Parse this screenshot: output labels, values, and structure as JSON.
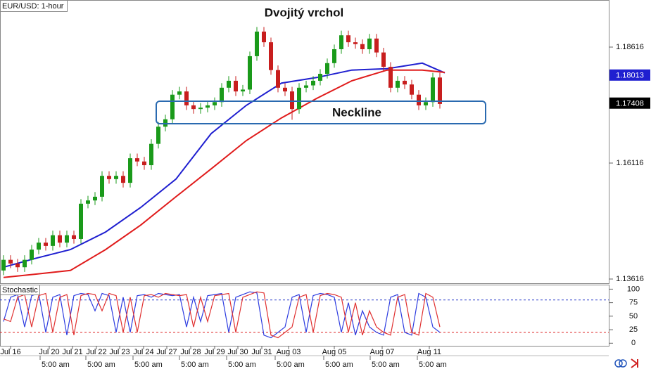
{
  "chart_data": [
    {
      "type": "candlestick",
      "label": "EUR/USD: 1-hour",
      "title": "Dvojitý vrchol",
      "annotation": "Neckline",
      "x": [
        0.5,
        1.5,
        2.5,
        3.5,
        4.5,
        5.5,
        6.5,
        7.5,
        8.5,
        9.5,
        10.5,
        11.5,
        12.5,
        13.5,
        14.5,
        15.5,
        16.5,
        17.5,
        18.5,
        19.5,
        20.5,
        21.5,
        22.5,
        23.5,
        24.5,
        25.5,
        26.5,
        27.5,
        28.5,
        29.5,
        30.5,
        31.5,
        32.5,
        33.5,
        34.5,
        35.5,
        36.5,
        37.5,
        38.5,
        39.5,
        40.5,
        41.5,
        42.5,
        43.5,
        44.5,
        45.5,
        46.5,
        47.5,
        48.5,
        49.5,
        50.5,
        51.5,
        52.5,
        53.5,
        54.5,
        55.5,
        56.5,
        57.5,
        58.5,
        59.5,
        60.5,
        61.5,
        62.5
      ],
      "open": [
        1.138,
        1.1403,
        1.1395,
        1.1387,
        1.1403,
        1.1425,
        1.144,
        1.1433,
        1.1456,
        1.144,
        1.1456,
        1.1448,
        1.1524,
        1.1531,
        1.1539,
        1.1584,
        1.1577,
        1.1584,
        1.1569,
        1.1622,
        1.1615,
        1.1607,
        1.1653,
        1.169,
        1.1706,
        1.1759,
        1.1766,
        1.1736,
        1.1728,
        1.1731,
        1.1736,
        1.1743,
        1.1774,
        1.1789,
        1.1766,
        1.177,
        1.1842,
        1.1895,
        1.1872,
        1.1812,
        1.1774,
        1.1766,
        1.1728,
        1.1774,
        1.1779,
        1.1789,
        1.1804,
        1.1827,
        1.1857,
        1.1887,
        1.1872,
        1.1868,
        1.1857,
        1.188,
        1.185,
        1.1819,
        1.1774,
        1.1789,
        1.1781,
        1.1759,
        1.1736,
        1.1743,
        1.1796
      ],
      "high": [
        1.1413,
        1.1413,
        1.1405,
        1.1413,
        1.1435,
        1.145,
        1.145,
        1.1466,
        1.1466,
        1.1466,
        1.1466,
        1.1534,
        1.1541,
        1.1549,
        1.1594,
        1.1594,
        1.1594,
        1.1594,
        1.1632,
        1.1632,
        1.1625,
        1.1663,
        1.17,
        1.1716,
        1.1769,
        1.1776,
        1.1776,
        1.1746,
        1.1741,
        1.1746,
        1.1753,
        1.1784,
        1.1799,
        1.1799,
        1.178,
        1.1852,
        1.1905,
        1.1905,
        1.1882,
        1.1822,
        1.1784,
        1.1776,
        1.1784,
        1.1789,
        1.1799,
        1.1814,
        1.1837,
        1.1867,
        1.1897,
        1.1897,
        1.1882,
        1.1878,
        1.189,
        1.189,
        1.186,
        1.1829,
        1.1799,
        1.1799,
        1.1791,
        1.1769,
        1.1753,
        1.1806,
        1.1806
      ],
      "low": [
        1.137,
        1.1385,
        1.1377,
        1.1377,
        1.1393,
        1.1415,
        1.1423,
        1.1423,
        1.143,
        1.143,
        1.1438,
        1.1438,
        1.1514,
        1.1521,
        1.1529,
        1.1567,
        1.1567,
        1.1559,
        1.1559,
        1.1605,
        1.1597,
        1.1597,
        1.1643,
        1.168,
        1.1696,
        1.1749,
        1.1726,
        1.1718,
        1.1718,
        1.1721,
        1.1726,
        1.1733,
        1.1764,
        1.1756,
        1.1756,
        1.176,
        1.1832,
        1.1862,
        1.1802,
        1.1764,
        1.1756,
        1.1705,
        1.1718,
        1.1764,
        1.1769,
        1.1779,
        1.1794,
        1.1817,
        1.1847,
        1.1862,
        1.1858,
        1.1847,
        1.1847,
        1.184,
        1.1809,
        1.1764,
        1.1764,
        1.1771,
        1.1749,
        1.1726,
        1.1726,
        1.1733,
        1.1729
      ],
      "close": [
        1.1403,
        1.1395,
        1.1387,
        1.1403,
        1.1425,
        1.144,
        1.1433,
        1.1456,
        1.144,
        1.1456,
        1.1448,
        1.1524,
        1.1531,
        1.1539,
        1.1584,
        1.1577,
        1.1584,
        1.1569,
        1.1622,
        1.1615,
        1.1607,
        1.1653,
        1.169,
        1.1706,
        1.1759,
        1.1766,
        1.1736,
        1.1728,
        1.1731,
        1.1736,
        1.1743,
        1.1774,
        1.1789,
        1.1766,
        1.177,
        1.1842,
        1.1895,
        1.1872,
        1.1812,
        1.1774,
        1.1766,
        1.1728,
        1.1774,
        1.1779,
        1.1789,
        1.1804,
        1.1827,
        1.1857,
        1.1887,
        1.1872,
        1.1868,
        1.1857,
        1.188,
        1.185,
        1.1819,
        1.1774,
        1.1789,
        1.1781,
        1.1759,
        1.1736,
        1.1743,
        1.1796,
        1.1739
      ],
      "up_color": "#1a9a1a",
      "down_color": "#c81e1e",
      "moving_averages": [
        {
          "color": "#1f1fd0",
          "x": [
            0.5,
            5,
            10,
            15,
            20,
            25,
            30,
            35,
            40,
            45,
            50,
            55,
            60,
            63.2
          ],
          "values": [
            1.1387,
            1.1406,
            1.1425,
            1.1463,
            1.1516,
            1.1577,
            1.1675,
            1.1736,
            1.1784,
            1.1796,
            1.1812,
            1.1815,
            1.1827,
            1.1806
          ]
        },
        {
          "color": "#e01b1b",
          "x": [
            0.5,
            5,
            10,
            15,
            20,
            25,
            30,
            35,
            40,
            45,
            50,
            55,
            60,
            63.2
          ],
          "values": [
            1.1365,
            1.1372,
            1.138,
            1.1425,
            1.1478,
            1.1539,
            1.1599,
            1.166,
            1.1709,
            1.1751,
            1.1789,
            1.1812,
            1.1812,
            1.1807
          ]
        }
      ],
      "price_markers": [
        {
          "value": 1.18013,
          "color": "#1f1fd0"
        },
        {
          "value": 1.17408,
          "color": "#000000"
        }
      ],
      "xlim": [
        0,
        86.5
      ],
      "ylim": [
        1.13525,
        1.19631
      ],
      "yticks": [
        1.13616,
        1.16116,
        1.18616
      ]
    },
    {
      "type": "line",
      "title": "Stochastic",
      "x": [
        0.5,
        1.5,
        2.5,
        3.5,
        4.5,
        5.5,
        6.5,
        7.5,
        8.5,
        9.5,
        10.5,
        11.5,
        12.5,
        13.5,
        14.5,
        15.5,
        16.5,
        17.5,
        18.5,
        19.5,
        20.5,
        21.5,
        22.5,
        23.5,
        24.5,
        25.5,
        26.5,
        27.5,
        28.5,
        29.5,
        30.5,
        31.5,
        32.5,
        33.5,
        34.5,
        35.5,
        36.5,
        37.5,
        38.5,
        39.5,
        40.5,
        41.5,
        42.5,
        43.5,
        44.5,
        45.5,
        46.5,
        47.5,
        48.5,
        49.5,
        50.5,
        51.5,
        52.5,
        53.5,
        54.5,
        55.5,
        56.5,
        57.5,
        58.5,
        59.5,
        60.5,
        61.5,
        62.5
      ],
      "series": [
        {
          "color": "#2d3ce0",
          "values": [
            40,
            85,
            90,
            30,
            88,
            92,
            20,
            85,
            90,
            15,
            88,
            92,
            90,
            60,
            92,
            88,
            20,
            85,
            20,
            88,
            90,
            85,
            92,
            90,
            88,
            90,
            30,
            85,
            40,
            88,
            90,
            92,
            20,
            85,
            90,
            95,
            93,
            15,
            10,
            20,
            30,
            85,
            90,
            20,
            88,
            92,
            90,
            85,
            20,
            75,
            15,
            60,
            30,
            20,
            15,
            85,
            90,
            20,
            15,
            92,
            85,
            30,
            20
          ]
        },
        {
          "color": "#e03030",
          "values": [
            45,
            40,
            85,
            90,
            30,
            88,
            92,
            20,
            85,
            90,
            15,
            88,
            92,
            90,
            60,
            92,
            88,
            20,
            85,
            20,
            88,
            90,
            85,
            92,
            90,
            88,
            90,
            30,
            85,
            40,
            88,
            90,
            92,
            20,
            85,
            90,
            95,
            93,
            15,
            10,
            20,
            30,
            85,
            90,
            20,
            88,
            92,
            90,
            85,
            20,
            75,
            15,
            60,
            30,
            20,
            15,
            85,
            90,
            20,
            15,
            92,
            85,
            30
          ]
        }
      ],
      "levels": [
        {
          "value": 80,
          "color": "#3344cc"
        },
        {
          "value": 20,
          "color": "#dd2222"
        }
      ],
      "xlim": [
        0,
        86.5
      ],
      "ylim": [
        -4.8,
        108.3
      ],
      "yticks": [
        0,
        25,
        50,
        75,
        100
      ],
      "xticks": [
        {
          "value": 1.5,
          "label": "Jul 16"
        },
        {
          "value": 7,
          "label": "Jul 20"
        },
        {
          "value": 10.3,
          "label": "Jul 21"
        },
        {
          "value": 13.7,
          "label": "Jul 22"
        },
        {
          "value": 17,
          "label": "Jul 23"
        },
        {
          "value": 20.4,
          "label": "Jul 24"
        },
        {
          "value": 23.7,
          "label": "Jul 27"
        },
        {
          "value": 27.1,
          "label": "Jul 28"
        },
        {
          "value": 30.5,
          "label": "Jul 29"
        },
        {
          "value": 33.8,
          "label": "Jul 30"
        },
        {
          "value": 37.2,
          "label": "Jul 31"
        },
        {
          "value": 41,
          "label": "Aug 03"
        },
        {
          "value": 47.5,
          "label": "Aug 05"
        },
        {
          "value": 54.3,
          "label": "Aug 07"
        },
        {
          "value": 61,
          "label": "Aug 11"
        }
      ],
      "xticks_minor": [
        {
          "value": 5.7,
          "label": "5:00 am"
        },
        {
          "value": 12.2,
          "label": "5:00 am"
        },
        {
          "value": 18.9,
          "label": "5:00 am"
        },
        {
          "value": 25.5,
          "label": "5:00 am"
        },
        {
          "value": 32.2,
          "label": "5:00 am"
        },
        {
          "value": 39.1,
          "label": "5:00 am"
        },
        {
          "value": 46,
          "label": "5:00 am"
        },
        {
          "value": 52.6,
          "label": "5:00 am"
        },
        {
          "value": 59.3,
          "label": "5:00 am"
        }
      ]
    }
  ]
}
